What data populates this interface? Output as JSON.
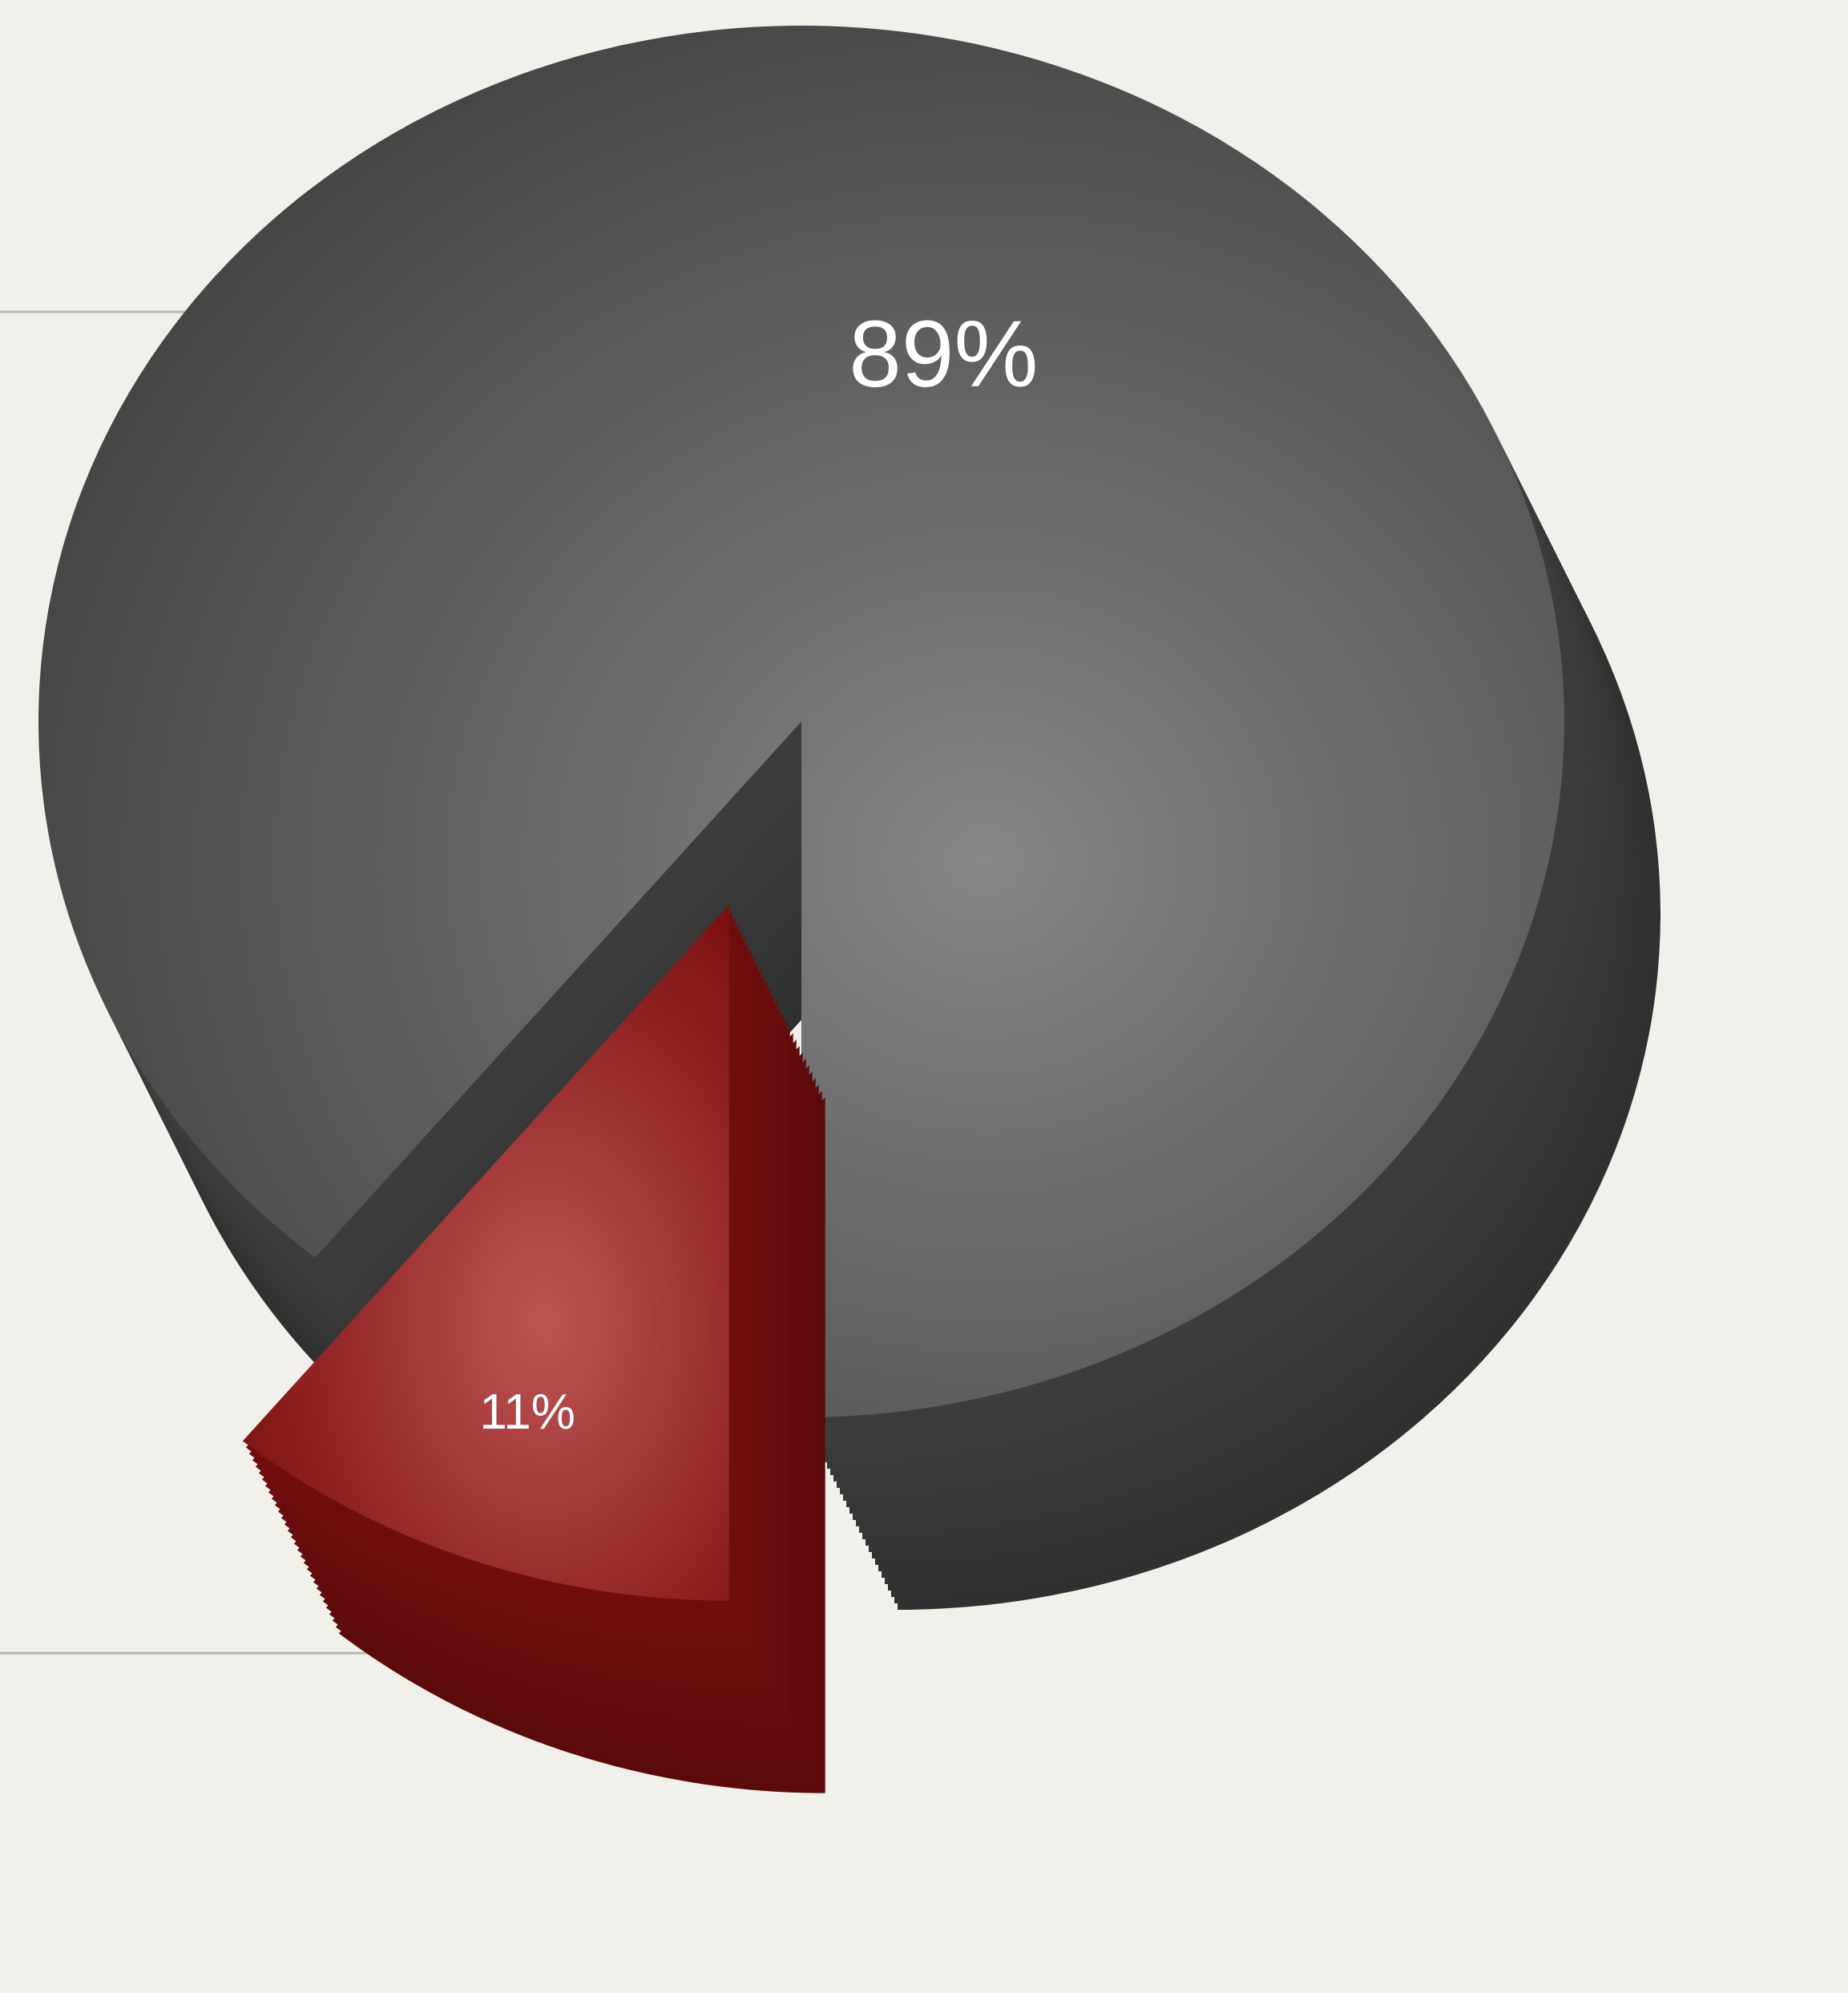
{
  "chart_data": {
    "type": "pie",
    "values": [
      89,
      11
    ],
    "value_labels": [
      "89%",
      "11%"
    ],
    "colors": [
      "#575757",
      "#a51313"
    ],
    "exploded": [
      false,
      true
    ]
  }
}
